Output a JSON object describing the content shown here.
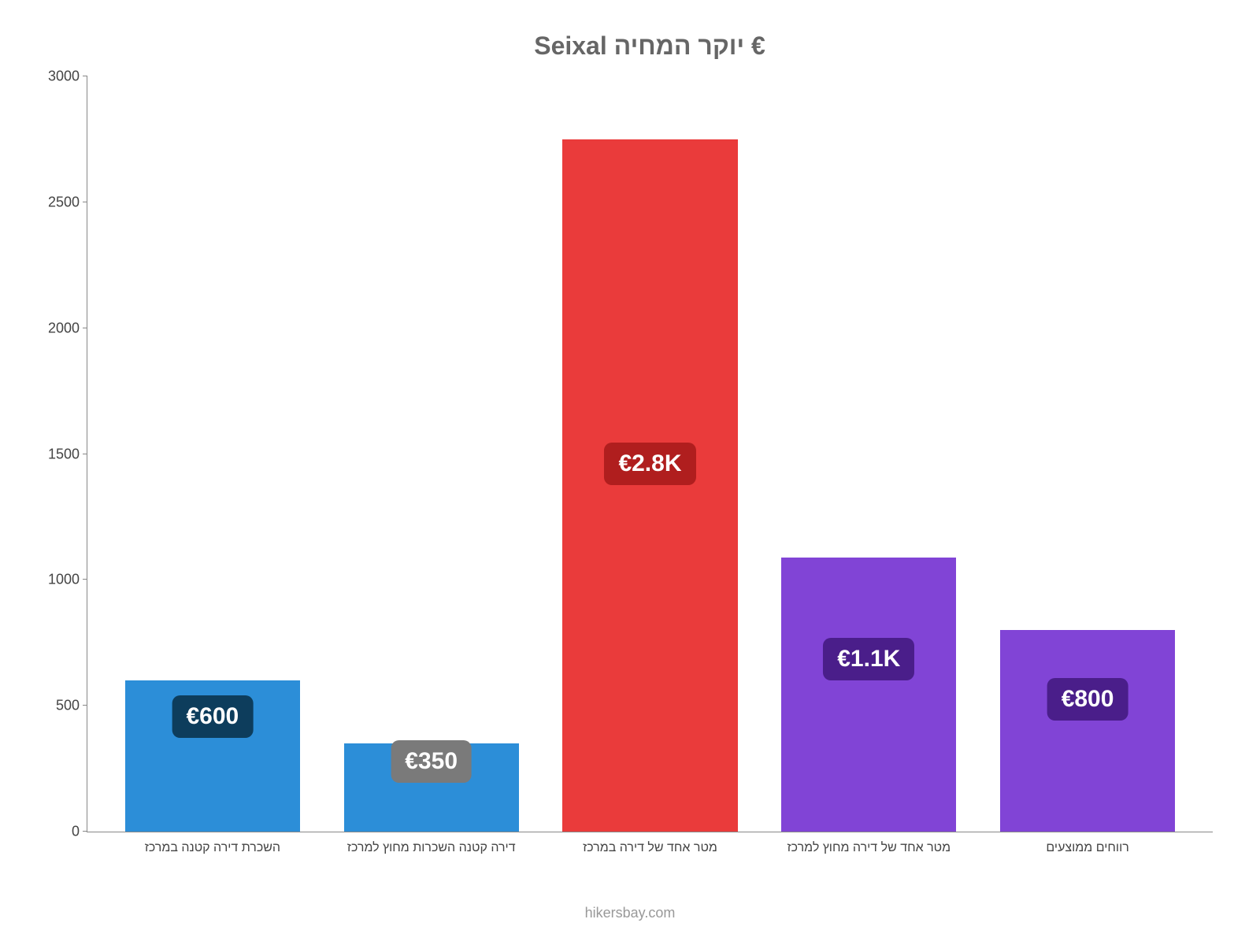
{
  "chart": {
    "type": "bar",
    "title": "€ יוקר המחיה Seixal",
    "title_fontsize": 32,
    "title_color": "#666666",
    "background_color": "#ffffff",
    "categories": [
      "השכרת דירה קטנה במרכז",
      "דירה קטנה השכרות מחוץ למרכז",
      "מטר אחד של דירה במרכז",
      "מטר אחד של דירה מחוץ למרכז",
      "רווחים ממוצעים"
    ],
    "values": [
      600,
      350,
      2750,
      1090,
      800
    ],
    "value_labels": [
      "€600",
      "€350",
      "€2.8K",
      "€1.1K",
      "€800"
    ],
    "bar_colors": [
      "#2c8ed8",
      "#2c8ed8",
      "#ea3b3b",
      "#8144d6",
      "#8144d6"
    ],
    "label_bg_colors": [
      "#0d3d5c",
      "#7a7a7a",
      "#b01e1e",
      "#4a1e8a",
      "#4a1e8a"
    ],
    "label_fontsize": 30,
    "label_text_color": "#ffffff",
    "ylim": [
      0,
      3000
    ],
    "yticks": [
      0,
      500,
      1000,
      1500,
      2000,
      2500,
      3000
    ],
    "axis_fontsize": 18,
    "axis_color": "#444444",
    "border_color": "#888888",
    "bar_width": 0.8,
    "x_label_fontsize": 16
  },
  "footer": "hikersbay.com"
}
